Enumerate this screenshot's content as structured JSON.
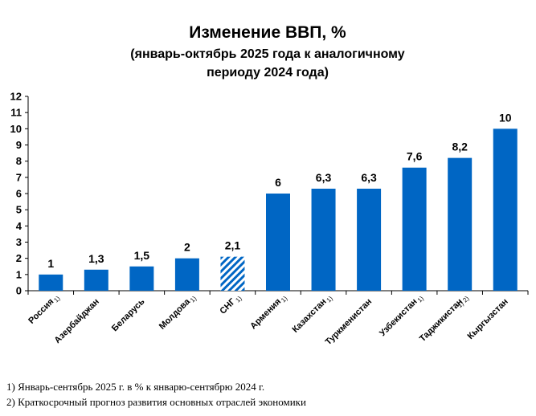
{
  "chart_data": {
    "type": "bar",
    "title": "Изменение ВВП, %",
    "subtitle_line1": "(январь-октябрь 2025 года к аналогичному",
    "subtitle_line2": "периоду 2024 года)",
    "categories": [
      "Россия",
      "Азербайджан",
      "Беларусь",
      "Молдова",
      "СНГ",
      "Армения",
      "Казахстан",
      "Туркменистан",
      "Узбекистан",
      "Таджикистан",
      "Кыргызстан"
    ],
    "values": [
      1,
      1.3,
      1.5,
      2,
      2.1,
      6,
      6.3,
      6.3,
      7.6,
      8.2,
      10
    ],
    "value_labels": [
      "1",
      "1,3",
      "1,5",
      "2",
      "2,1",
      "6",
      "6,3",
      "6,3",
      "7,6",
      "8,2",
      "10"
    ],
    "notes": [
      "1)",
      "",
      "",
      "1)",
      "1)",
      "1)",
      "1)",
      "",
      "1)",
      "1) 2)",
      ""
    ],
    "highlight": "СНГ",
    "ylim": [
      0,
      12
    ],
    "yticks": [
      0,
      1,
      2,
      3,
      4,
      5,
      6,
      7,
      8,
      9,
      10,
      11,
      12
    ],
    "bar_color": "#0066c4",
    "hatch_color": "#0066c4",
    "grid": false
  },
  "footnotes": [
    "1) Январь-сентябрь 2025 г. в % к январю-сентябрю 2024 г.",
    "2) Краткосрочный прогноз развития основных отраслей экономики"
  ]
}
